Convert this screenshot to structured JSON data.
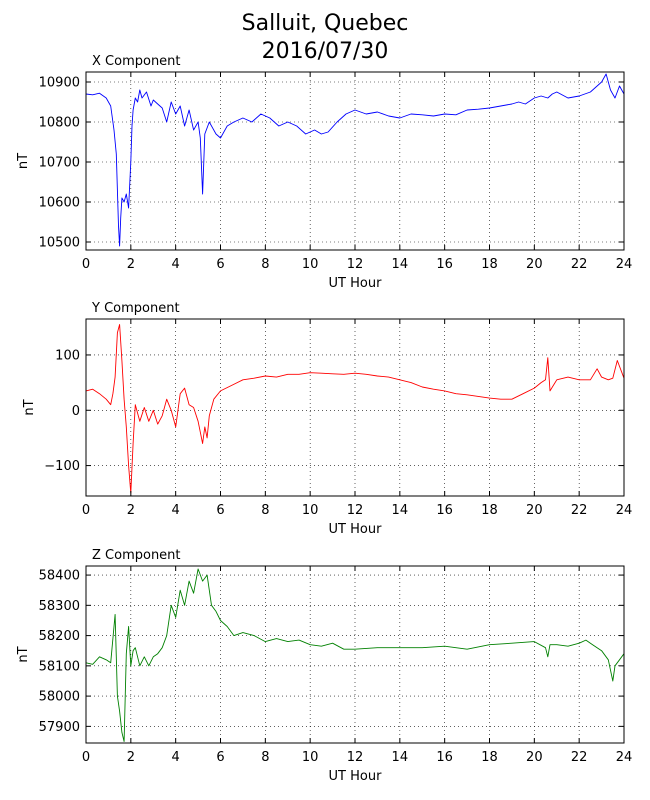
{
  "title_line1": "Salluit, Quebec",
  "title_line2": "2016/07/30",
  "chart_data": [
    {
      "type": "line",
      "title": "X Component",
      "xlabel": "UT Hour",
      "ylabel": "nT",
      "xlim": [
        0,
        24
      ],
      "ylim": [
        10480,
        10925
      ],
      "xticks": [
        0,
        2,
        4,
        6,
        8,
        10,
        12,
        14,
        16,
        18,
        20,
        22,
        24
      ],
      "yticks": [
        10500,
        10600,
        10700,
        10800,
        10900
      ],
      "grid": true,
      "color": "#0000ff",
      "series": [
        {
          "x": [
            0,
            0.3,
            0.6,
            0.9,
            1.1,
            1.25,
            1.35,
            1.45,
            1.5,
            1.55,
            1.6,
            1.7,
            1.8,
            1.9,
            2.0,
            2.05,
            2.1,
            2.2,
            2.3,
            2.4,
            2.5,
            2.7,
            2.9,
            3.0,
            3.2,
            3.4,
            3.6,
            3.8,
            4.0,
            4.2,
            4.4,
            4.6,
            4.8,
            5.0,
            5.1,
            5.2,
            5.3,
            5.5,
            5.8,
            6.0,
            6.3,
            6.6,
            7.0,
            7.4,
            7.8,
            8.2,
            8.6,
            9.0,
            9.4,
            9.8,
            10.2,
            10.5,
            10.8,
            11.2,
            11.6,
            12.0,
            12.5,
            13.0,
            13.5,
            14.0,
            14.5,
            15.0,
            15.5,
            16.0,
            16.5,
            17.0,
            17.5,
            18.0,
            18.5,
            19.0,
            19.3,
            19.6,
            20.0,
            20.3,
            20.6,
            20.8,
            21.0,
            21.5,
            22.0,
            22.5,
            23.0,
            23.2,
            23.4,
            23.6,
            23.8,
            24.0
          ],
          "y": [
            10870,
            10868,
            10872,
            10860,
            10840,
            10780,
            10720,
            10540,
            10490,
            10560,
            10610,
            10600,
            10620,
            10585,
            10700,
            10790,
            10830,
            10860,
            10850,
            10880,
            10860,
            10875,
            10840,
            10855,
            10845,
            10835,
            10800,
            10850,
            10820,
            10840,
            10790,
            10830,
            10780,
            10800,
            10760,
            10620,
            10770,
            10800,
            10770,
            10760,
            10790,
            10800,
            10810,
            10800,
            10820,
            10810,
            10790,
            10800,
            10790,
            10770,
            10780,
            10770,
            10775,
            10800,
            10820,
            10830,
            10820,
            10825,
            10815,
            10810,
            10820,
            10818,
            10815,
            10820,
            10818,
            10830,
            10832,
            10835,
            10840,
            10845,
            10850,
            10845,
            10860,
            10865,
            10860,
            10870,
            10875,
            10860,
            10865,
            10875,
            10900,
            10920,
            10880,
            10860,
            10890,
            10870
          ]
        }
      ]
    },
    {
      "type": "line",
      "title": "Y Component",
      "xlabel": "UT Hour",
      "ylabel": "nT",
      "xlim": [
        0,
        24
      ],
      "ylim": [
        -155,
        165
      ],
      "xticks": [
        0,
        2,
        4,
        6,
        8,
        10,
        12,
        14,
        16,
        18,
        20,
        22,
        24
      ],
      "yticks": [
        -100,
        0,
        100
      ],
      "grid": true,
      "color": "#ff0000",
      "series": [
        {
          "x": [
            0,
            0.3,
            0.6,
            0.9,
            1.1,
            1.2,
            1.3,
            1.4,
            1.5,
            1.6,
            1.7,
            1.8,
            1.9,
            2.0,
            2.1,
            2.2,
            2.4,
            2.6,
            2.8,
            3.0,
            3.2,
            3.4,
            3.6,
            3.8,
            4.0,
            4.2,
            4.4,
            4.6,
            4.8,
            5.0,
            5.2,
            5.3,
            5.4,
            5.5,
            5.7,
            6.0,
            6.5,
            7.0,
            7.5,
            8.0,
            8.5,
            9.0,
            9.5,
            10.0,
            10.5,
            11.0,
            11.5,
            12.0,
            12.5,
            13.0,
            13.5,
            14.0,
            14.5,
            15.0,
            15.5,
            16.0,
            16.5,
            17.0,
            17.5,
            18.0,
            18.5,
            19.0,
            19.5,
            20.0,
            20.3,
            20.5,
            20.6,
            20.7,
            21.0,
            21.5,
            22.0,
            22.5,
            22.8,
            23.0,
            23.3,
            23.5,
            23.7,
            24.0
          ],
          "y": [
            35,
            38,
            30,
            20,
            10,
            30,
            60,
            140,
            155,
            90,
            20,
            -30,
            -100,
            -150,
            -60,
            10,
            -20,
            5,
            -20,
            0,
            -25,
            -10,
            20,
            0,
            -30,
            30,
            40,
            10,
            5,
            -20,
            -60,
            -30,
            -50,
            -10,
            20,
            35,
            45,
            55,
            58,
            62,
            60,
            65,
            65,
            68,
            67,
            66,
            65,
            67,
            65,
            62,
            60,
            55,
            50,
            42,
            38,
            35,
            30,
            28,
            25,
            22,
            20,
            20,
            30,
            40,
            50,
            55,
            95,
            35,
            55,
            60,
            55,
            55,
            75,
            60,
            55,
            58,
            90,
            58
          ]
        }
      ]
    },
    {
      "type": "line",
      "title": "Z Component",
      "xlabel": "UT Hour",
      "ylabel": "nT",
      "xlim": [
        0,
        24
      ],
      "ylim": [
        57845,
        58430
      ],
      "xticks": [
        0,
        2,
        4,
        6,
        8,
        10,
        12,
        14,
        16,
        18,
        20,
        22,
        24
      ],
      "yticks": [
        57900,
        58000,
        58100,
        58200,
        58300,
        58400
      ],
      "grid": true,
      "color": "#008000",
      "series": [
        {
          "x": [
            0,
            0.3,
            0.6,
            0.9,
            1.1,
            1.3,
            1.4,
            1.5,
            1.6,
            1.7,
            1.8,
            1.9,
            2.0,
            2.1,
            2.2,
            2.4,
            2.6,
            2.8,
            3.0,
            3.2,
            3.4,
            3.6,
            3.8,
            4.0,
            4.2,
            4.4,
            4.6,
            4.8,
            5.0,
            5.2,
            5.4,
            5.6,
            5.8,
            6.0,
            6.3,
            6.6,
            7.0,
            7.5,
            8.0,
            8.5,
            9.0,
            9.5,
            10.0,
            10.5,
            11.0,
            11.5,
            12.0,
            13.0,
            14.0,
            15.0,
            16.0,
            17.0,
            18.0,
            19.0,
            20.0,
            20.5,
            20.6,
            20.7,
            21.0,
            21.5,
            22.0,
            22.3,
            22.6,
            23.0,
            23.3,
            23.5,
            23.6,
            23.8,
            24.0
          ],
          "y": [
            58110,
            58105,
            58130,
            58120,
            58110,
            58270,
            58000,
            57950,
            57880,
            57850,
            58140,
            58230,
            58100,
            58150,
            58160,
            58100,
            58130,
            58100,
            58130,
            58140,
            58160,
            58200,
            58300,
            58260,
            58350,
            58300,
            58380,
            58340,
            58420,
            58380,
            58400,
            58300,
            58280,
            58250,
            58230,
            58200,
            58210,
            58200,
            58180,
            58190,
            58180,
            58185,
            58170,
            58165,
            58175,
            58155,
            58155,
            58160,
            58160,
            58160,
            58165,
            58155,
            58170,
            58175,
            58180,
            58160,
            58130,
            58170,
            58170,
            58165,
            58175,
            58185,
            58170,
            58150,
            58120,
            58050,
            58100,
            58120,
            58140
          ]
        }
      ]
    }
  ]
}
